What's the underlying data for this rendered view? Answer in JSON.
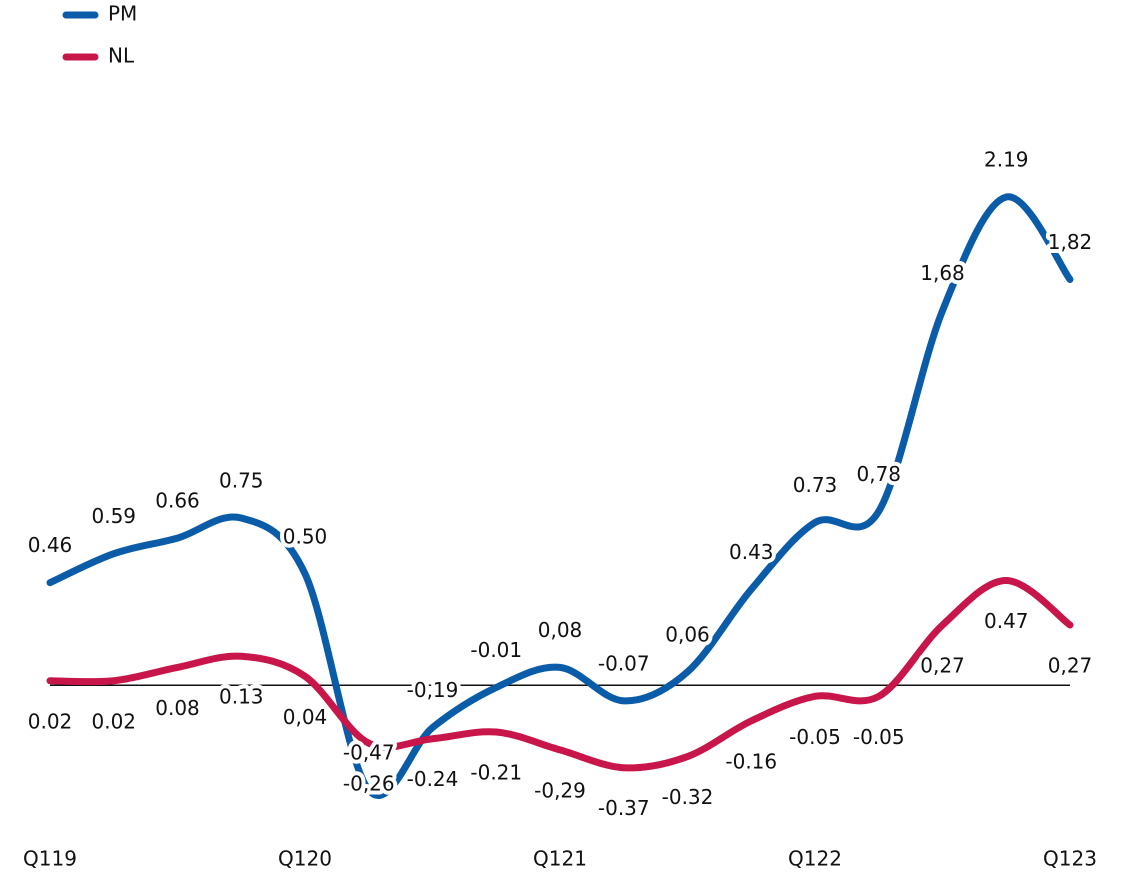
{
  "chart_data": {
    "type": "line",
    "categories": [
      "Q119",
      null,
      null,
      null,
      "Q120",
      null,
      null,
      null,
      "Q121",
      null,
      null,
      null,
      "Q122",
      null,
      null,
      null,
      "Q123"
    ],
    "series": [
      {
        "name": "PM",
        "color": "#0a5ca8",
        "values": [
          0.46,
          0.59,
          0.66,
          0.75,
          0.5,
          -0.47,
          -0.19,
          -0.01,
          0.08,
          -0.07,
          0.06,
          0.43,
          0.73,
          0.78,
          1.68,
          2.19,
          1.82
        ],
        "value_labels": [
          "0.46",
          "0.59",
          "0.66",
          "0.75",
          "0.50",
          "-0,47",
          "-0,19",
          "-0.01",
          "0,08",
          "-0.07",
          "0,06",
          "0.43",
          "0.73",
          "0,78",
          "1,68",
          "2.19",
          "1,82"
        ]
      },
      {
        "name": "NL",
        "color": "#c8164a",
        "values": [
          0.02,
          0.02,
          0.08,
          0.13,
          0.04,
          -0.26,
          -0.24,
          -0.21,
          -0.29,
          -0.37,
          -0.32,
          -0.16,
          -0.05,
          -0.05,
          0.27,
          0.47,
          0.27
        ],
        "value_labels": [
          "0.02",
          "0.02",
          "0.08",
          "0.13",
          "0,04",
          "-0,26",
          "-0.24",
          "-0.21",
          "-0,29",
          "-0.37",
          "-0.32",
          "-0.16",
          "-0.05",
          "-0.05",
          "0,27",
          "0.47",
          "0,27"
        ]
      }
    ],
    "legend": "top-left"
  }
}
